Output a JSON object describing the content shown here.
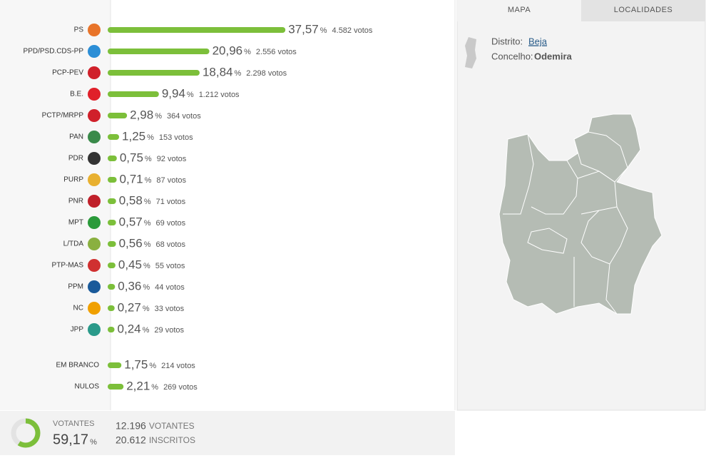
{
  "chart_data": [
    {
      "type": "bar",
      "unit": "%",
      "color": "#7cbf3a",
      "categories": [
        "PS",
        "PPD/PSD.CDS-PP",
        "PCP-PEV",
        "B.E.",
        "PCTP/MRPP",
        "PAN",
        "PDR",
        "PURP",
        "PNR",
        "MPT",
        "L/TDA",
        "PTP-MAS",
        "PPM",
        "NC",
        "JPP"
      ],
      "values": [
        37.57,
        20.96,
        18.84,
        9.94,
        2.98,
        1.25,
        0.75,
        0.71,
        0.58,
        0.57,
        0.56,
        0.45,
        0.36,
        0.27,
        0.24
      ],
      "value_labels": [
        "37,57",
        "20,96",
        "18,84",
        "9,94",
        "2,98",
        "1,25",
        "0,75",
        "0,71",
        "0,58",
        "0,57",
        "0,56",
        "0,45",
        "0,36",
        "0,27",
        "0,24"
      ],
      "votes": [
        "4.582 votos",
        "2.556 votos",
        "2.298 votos",
        "1.212 votos",
        "364 votos",
        "153 votos",
        "92 votos",
        "87 votos",
        "71 votos",
        "69 votos",
        "68 votos",
        "55 votos",
        "44 votos",
        "33 votos",
        "29 votos"
      ]
    },
    {
      "type": "bar",
      "unit": "%",
      "color": "#7cbf3a",
      "categories": [
        "EM BRANCO",
        "NULOS"
      ],
      "values": [
        1.75,
        2.21
      ],
      "value_labels": [
        "1,75",
        "2,21"
      ],
      "votes": [
        "214 votos",
        "269 votos"
      ]
    }
  ],
  "summary": {
    "label": "VOTANTES",
    "value": 59.17,
    "value_label": "59,17",
    "unit": "%",
    "voters": "12.196",
    "voters_label": "VOTANTES",
    "registered": "20.612",
    "registered_label": "INSCRITOS"
  },
  "tabs": [
    "MAPA",
    "LOCALIDADES"
  ],
  "location": {
    "district_label": "Distrito:",
    "district": "Beja",
    "municipality_label": "Concelho:",
    "municipality": "Odemira"
  }
}
